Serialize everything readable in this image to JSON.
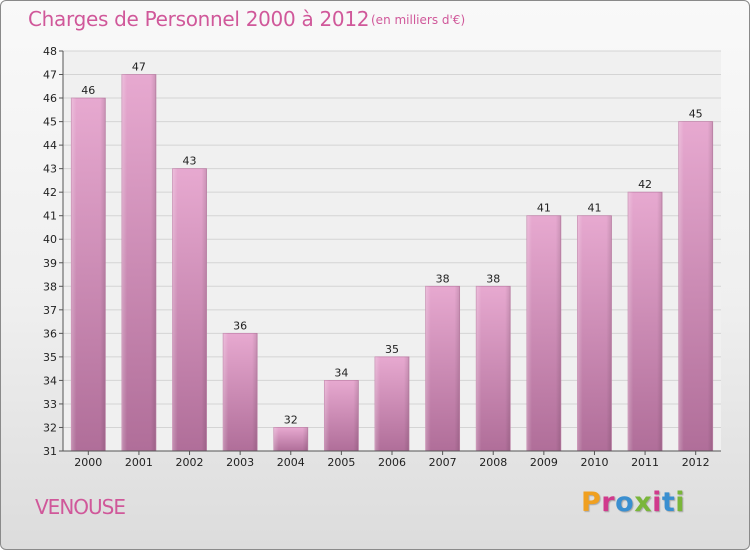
{
  "header": {
    "title": "Charges de Personnel 2000 à 2012",
    "subtitle": "(en milliers d'€)"
  },
  "footer": {
    "commune": "VENOUSE",
    "logo_text": "Proxiti",
    "logo_colors": [
      "#f0a020",
      "#d03a8c",
      "#3a8fd0",
      "#7ab63a",
      "#d03a8c",
      "#3a8fd0",
      "#7ab63a"
    ]
  },
  "colors": {
    "title": "#d0589a",
    "bar_top": "#e7a9d0",
    "bar_bottom": "#b06e99",
    "plot_bg": "#f0f0f0",
    "grid": "#d4d4d4"
  },
  "chart_data": {
    "type": "bar",
    "categories": [
      "2000",
      "2001",
      "2002",
      "2003",
      "2004",
      "2005",
      "2006",
      "2007",
      "2008",
      "2009",
      "2010",
      "2011",
      "2012"
    ],
    "values": [
      46,
      47,
      43,
      36,
      32,
      34,
      35,
      38,
      38,
      41,
      41,
      42,
      45
    ],
    "ylim": [
      31,
      48
    ],
    "yticks": [
      31,
      32,
      33,
      34,
      35,
      36,
      37,
      38,
      39,
      40,
      41,
      42,
      43,
      44,
      45,
      46,
      47,
      48
    ],
    "grid": true,
    "data_labels": true
  }
}
